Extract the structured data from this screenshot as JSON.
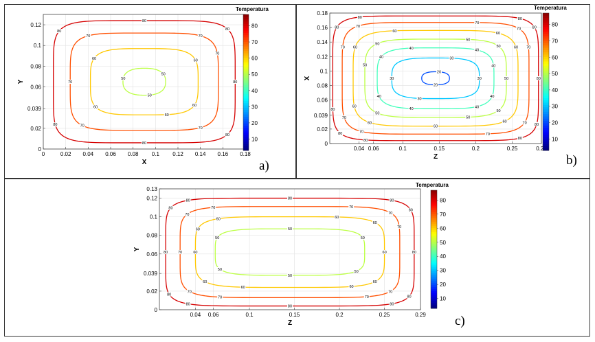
{
  "chart_data": [
    {
      "type": "contour",
      "panel_label": "a)",
      "xlabel": "X",
      "ylabel": "Y",
      "xlim": [
        0,
        0.18
      ],
      "ylim": [
        0,
        0.13
      ],
      "x_ticks": [
        "0",
        "0.02",
        "0.04",
        "0.06",
        "0.08",
        "0.1",
        "0.12",
        "0.14",
        "0.16",
        "0.18"
      ],
      "x_tick_values": [
        0,
        0.02,
        0.04,
        0.06,
        0.08,
        0.1,
        0.12,
        0.14,
        0.16,
        0.18
      ],
      "y_ticks": [
        "0",
        "0.02",
        "0.039",
        "0.06",
        "0.08",
        "0.1",
        "0.12"
      ],
      "y_tick_values": [
        0,
        0.02,
        0.039,
        0.06,
        0.08,
        0.1,
        0.12
      ],
      "colorbar": {
        "title": "Temperatura",
        "min": 3,
        "max": 87,
        "ticks": [
          "10",
          "20",
          "30",
          "40",
          "50",
          "60",
          "70",
          "80"
        ],
        "tick_values": [
          10,
          20,
          30,
          40,
          50,
          60,
          70,
          80
        ]
      },
      "grid": true,
      "contours": [
        {
          "level": 80,
          "label": "80",
          "cx": 0.09,
          "cy": 0.065,
          "rx": 0.081,
          "ry": 0.059,
          "n": 6,
          "labels_at": [
            0,
            40,
            90,
            145,
            200,
            270,
            320
          ]
        },
        {
          "level": 70,
          "label": "70",
          "cx": 0.09,
          "cy": 0.065,
          "rx": 0.066,
          "ry": 0.047,
          "n": 5,
          "labels_at": [
            15,
            60,
            120,
            180,
            230,
            300
          ]
        },
        {
          "level": 60,
          "label": "60",
          "cx": 0.09,
          "cy": 0.065,
          "rx": 0.048,
          "ry": 0.032,
          "n": 4,
          "labels_at": [
            25,
            150,
            215,
            280,
            330
          ]
        },
        {
          "level": 50,
          "label": "50",
          "cx": 0.09,
          "cy": 0.065,
          "rx": 0.019,
          "ry": 0.013,
          "n": 2.5,
          "labels_at": [
            30,
            170,
            280
          ]
        }
      ]
    },
    {
      "type": "contour",
      "panel_label": "b)",
      "xlabel": "Z",
      "ylabel": "X",
      "xlim": [
        0,
        0.29
      ],
      "ylim": [
        0,
        0.18
      ],
      "x_ticks": [
        "0.04",
        "0.06",
        "0.1",
        "0.15",
        "0.2",
        "0.25",
        "0.29"
      ],
      "x_tick_values": [
        0.04,
        0.06,
        0.1,
        0.15,
        0.2,
        0.25,
        0.29
      ],
      "y_ticks": [
        "0",
        "0.02",
        "0.039",
        "0.06",
        "0.08",
        "0.1",
        "0.12",
        "0.14",
        "0.16",
        "0.18"
      ],
      "y_tick_values": [
        0,
        0.02,
        0.039,
        0.06,
        0.08,
        0.1,
        0.12,
        0.14,
        0.16,
        0.18
      ],
      "colorbar": {
        "title": "Temperatura",
        "min": 3,
        "max": 87,
        "ticks": [
          "10",
          "20",
          "30",
          "40",
          "50",
          "60",
          "70",
          "80"
        ],
        "tick_values": [
          10,
          20,
          30,
          40,
          50,
          60,
          70,
          80
        ]
      },
      "grid": true,
      "contours": [
        {
          "level": 80,
          "label": "80",
          "cx": 0.145,
          "cy": 0.09,
          "rx": 0.141,
          "ry": 0.086,
          "n": 7,
          "labels_at": [
            0,
            30,
            60,
            110,
            150,
            185,
            220,
            255,
            300,
            340
          ]
        },
        {
          "level": 70,
          "label": "70",
          "cx": 0.145,
          "cy": 0.09,
          "rx": 0.128,
          "ry": 0.077,
          "n": 6,
          "labels_at": [
            10,
            45,
            85,
            125,
            170,
            200,
            240,
            280,
            330
          ]
        },
        {
          "level": 60,
          "label": "60",
          "cx": 0.145,
          "cy": 0.09,
          "rx": 0.113,
          "ry": 0.066,
          "n": 5,
          "labels_at": [
            20,
            60,
            100,
            160,
            195,
            235,
            270,
            310
          ]
        },
        {
          "level": 50,
          "label": "50",
          "cx": 0.145,
          "cy": 0.09,
          "rx": 0.097,
          "ry": 0.054,
          "n": 4.5,
          "labels_at": [
            0,
            40,
            80,
            130,
            175,
            230,
            280,
            320
          ]
        },
        {
          "level": 40,
          "label": "40",
          "cx": 0.145,
          "cy": 0.09,
          "rx": 0.08,
          "ry": 0.042,
          "n": 4,
          "labels_at": [
            10,
            60,
            100,
            150,
            200,
            260,
            300,
            340
          ]
        },
        {
          "level": 30,
          "label": "30",
          "cx": 0.145,
          "cy": 0.09,
          "rx": 0.06,
          "ry": 0.028,
          "n": 3.5,
          "labels_at": [
            0,
            80,
            180,
            260
          ]
        },
        {
          "level": 20,
          "label": "20",
          "cx": 0.145,
          "cy": 0.09,
          "rx": 0.019,
          "ry": 0.009,
          "n": 2.5,
          "labels_at": [
            80,
            270
          ]
        }
      ]
    },
    {
      "type": "contour",
      "panel_label": "c)",
      "xlabel": "Z",
      "ylabel": "Y",
      "xlim": [
        0,
        0.29
      ],
      "ylim": [
        0,
        0.13
      ],
      "x_ticks": [
        "0.04",
        "0.06",
        "0.1",
        "0.15",
        "0.2",
        "0.25",
        "0.29"
      ],
      "x_tick_values": [
        0.04,
        0.06,
        0.1,
        0.15,
        0.2,
        0.25,
        0.29
      ],
      "y_ticks": [
        "0",
        "0.02",
        "0.039",
        "0.06",
        "0.08",
        "0.1",
        "0.12",
        "0.13"
      ],
      "y_tick_values": [
        0,
        0.02,
        0.039,
        0.06,
        0.08,
        0.1,
        0.12,
        0.13
      ],
      "colorbar": {
        "title": "Temperatura",
        "min": 3,
        "max": 87,
        "ticks": [
          "10",
          "20",
          "30",
          "40",
          "50",
          "60",
          "70",
          "80"
        ],
        "tick_values": [
          10,
          20,
          30,
          40,
          50,
          60,
          70,
          80
        ]
      },
      "grid": true,
      "contours": [
        {
          "level": 80,
          "label": "80",
          "cx": 0.145,
          "cy": 0.062,
          "rx": 0.138,
          "ry": 0.058,
          "n": 7,
          "labels_at": [
            0,
            25,
            60,
            90,
            120,
            150,
            180,
            205,
            240,
            270,
            300,
            330
          ]
        },
        {
          "level": 70,
          "label": "70",
          "cx": 0.145,
          "cy": 0.062,
          "rx": 0.122,
          "ry": 0.049,
          "n": 6,
          "labels_at": [
            10,
            40,
            80,
            110,
            145,
            180,
            220,
            255,
            290,
            320
          ]
        },
        {
          "level": 60,
          "label": "60",
          "cx": 0.145,
          "cy": 0.062,
          "rx": 0.105,
          "ry": 0.038,
          "n": 5,
          "labels_at": [
            0,
            40,
            80,
            120,
            160,
            180,
            220,
            260,
            290,
            320
          ]
        },
        {
          "level": 50,
          "label": "50",
          "cx": 0.145,
          "cy": 0.062,
          "rx": 0.083,
          "ry": 0.025,
          "n": 4.5,
          "labels_at": [
            20,
            90,
            160,
            210,
            270,
            320
          ]
        }
      ]
    }
  ]
}
